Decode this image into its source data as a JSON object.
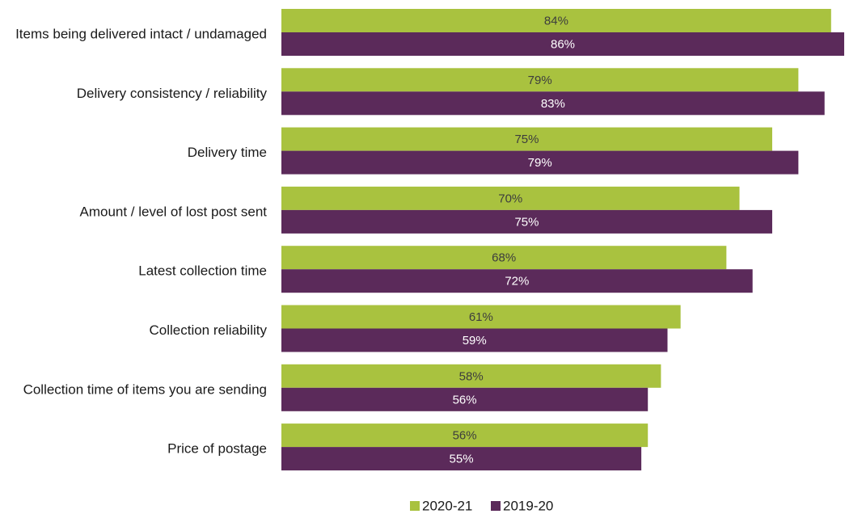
{
  "chart_data": {
    "type": "bar",
    "orientation": "horizontal",
    "categories": [
      "Items being delivered intact / undamaged",
      "Delivery consistency / reliability",
      "Delivery time",
      "Amount / level of lost post sent",
      "Latest collection time",
      "Collection reliability",
      "Collection time of items you are sending",
      "Price of postage"
    ],
    "series": [
      {
        "name": "2020-21",
        "color": "#a9c23f",
        "label_color": "#3d3d3d",
        "values": [
          84,
          79,
          75,
          70,
          68,
          61,
          58,
          56
        ],
        "labels": [
          "84%",
          "79%",
          "75%",
          "70%",
          "68%",
          "61%",
          "58%",
          "56%"
        ]
      },
      {
        "name": "2019-20",
        "color": "#5b2a5a",
        "label_color": "#ffffff",
        "values": [
          86,
          83,
          79,
          75,
          72,
          59,
          56,
          55
        ],
        "labels": [
          "86%",
          "83%",
          "79%",
          "75%",
          "72%",
          "59%",
          "56%",
          "55%"
        ]
      }
    ],
    "xlim": [
      0,
      86
    ],
    "grid": false,
    "legend": "bottom-center",
    "title": "",
    "xlabel": "",
    "ylabel": ""
  }
}
